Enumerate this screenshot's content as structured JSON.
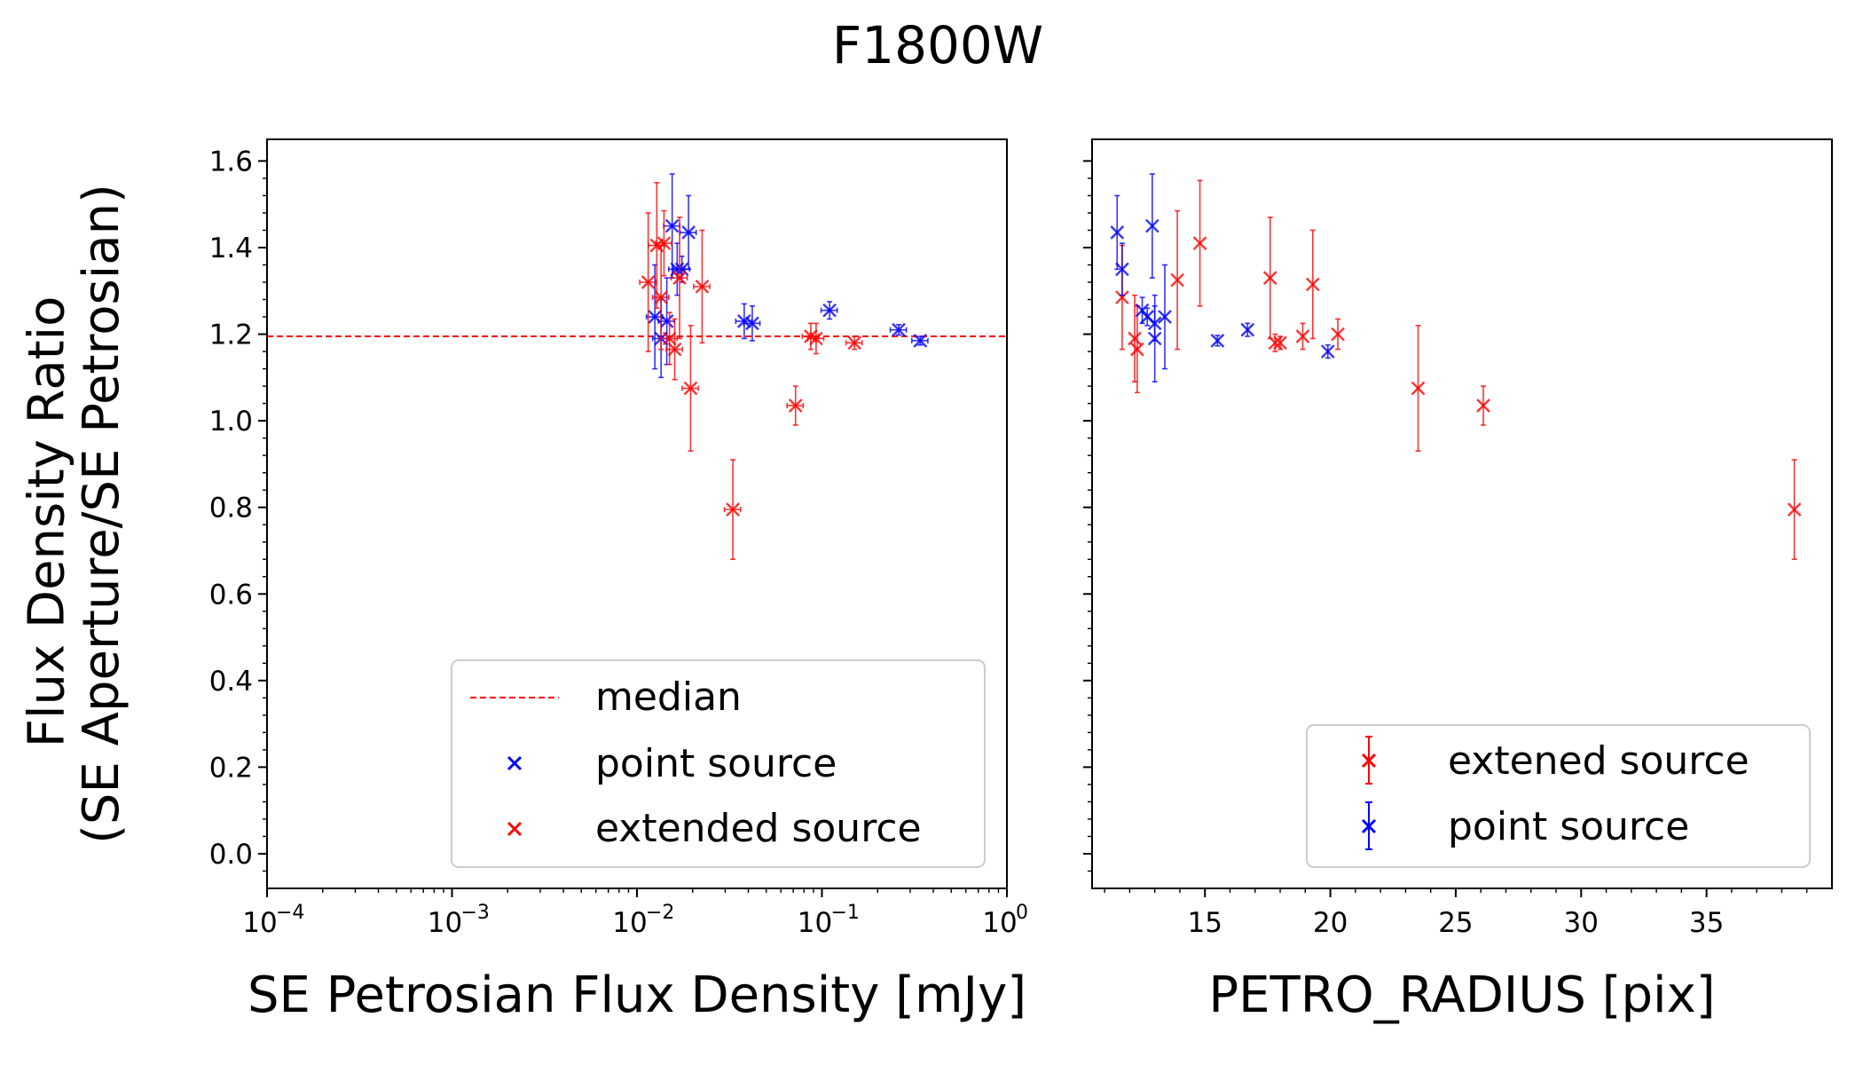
{
  "figure_title": "F1800W",
  "colors": {
    "point": "#0000ff",
    "extended": "#ff0000",
    "median": "#ff0000",
    "axis": "#000000",
    "legend_edge": "#cccccc"
  },
  "chart_data": [
    {
      "type": "scatter",
      "xscale": "log",
      "xlabel": "SE Petrosian Flux Density [mJy]",
      "ylabel": "Flux Density Ratio\n(SE Aperture/SE Petrosian)",
      "xlim": [
        0.0001,
        1
      ],
      "ylim": [
        -0.08,
        1.65
      ],
      "xtick_labels": [
        {
          "value": 0.0001,
          "base": "10",
          "exp": "−4"
        },
        {
          "value": 0.001,
          "base": "10",
          "exp": "−3"
        },
        {
          "value": 0.01,
          "base": "10",
          "exp": "−2"
        },
        {
          "value": 0.1,
          "base": "10",
          "exp": "−1"
        },
        {
          "value": 1,
          "base": "10",
          "exp": "0"
        }
      ],
      "ytick_labels": [
        "0.0",
        "0.2",
        "0.4",
        "0.6",
        "0.8",
        "1.0",
        "1.2",
        "1.4",
        "1.6"
      ],
      "median": 1.195,
      "legend": {
        "location": "lower-right",
        "entries": [
          "median",
          "point source",
          "extended source"
        ]
      },
      "series": [
        {
          "name": "point source",
          "points": [
            {
              "x": 0.0125,
              "y": 1.24,
              "yerr": 0.12
            },
            {
              "x": 0.0135,
              "y": 1.19,
              "yerr": 0.09
            },
            {
              "x": 0.0145,
              "y": 1.23,
              "yerr": 0.1
            },
            {
              "x": 0.0155,
              "y": 1.45,
              "yerr": 0.12
            },
            {
              "x": 0.0165,
              "y": 1.35,
              "yerr": 0.06
            },
            {
              "x": 0.019,
              "y": 1.435,
              "yerr": 0.085
            },
            {
              "x": 0.0175,
              "y": 1.35,
              "yerr": 0.03
            },
            {
              "x": 0.038,
              "y": 1.23,
              "yerr": 0.04
            },
            {
              "x": 0.042,
              "y": 1.225,
              "yerr": 0.04
            },
            {
              "x": 0.11,
              "y": 1.255,
              "yerr": 0.02
            },
            {
              "x": 0.26,
              "y": 1.21,
              "yerr": 0.012
            },
            {
              "x": 0.34,
              "y": 1.185,
              "yerr": 0.01
            }
          ]
        },
        {
          "name": "extended source",
          "points": [
            {
              "x": 0.0115,
              "y": 1.32,
              "yerr": 0.16
            },
            {
              "x": 0.0128,
              "y": 1.405,
              "yerr": 0.145
            },
            {
              "x": 0.0135,
              "y": 1.285,
              "yerr": 0.12
            },
            {
              "x": 0.014,
              "y": 1.41,
              "yerr": 0.075
            },
            {
              "x": 0.015,
              "y": 1.19,
              "yerr": 0.06
            },
            {
              "x": 0.016,
              "y": 1.165,
              "yerr": 0.07
            },
            {
              "x": 0.017,
              "y": 1.33,
              "yerr": 0.14
            },
            {
              "x": 0.0195,
              "y": 1.075,
              "yerr": 0.145
            },
            {
              "x": 0.0225,
              "y": 1.31,
              "yerr": 0.13
            },
            {
              "x": 0.033,
              "y": 0.795,
              "yerr": 0.115
            },
            {
              "x": 0.072,
              "y": 1.035,
              "yerr": 0.045
            },
            {
              "x": 0.087,
              "y": 1.195,
              "yerr": 0.03
            },
            {
              "x": 0.093,
              "y": 1.19,
              "yerr": 0.035
            },
            {
              "x": 0.15,
              "y": 1.18,
              "yerr": 0.015
            }
          ]
        }
      ]
    },
    {
      "type": "scatter",
      "xscale": "linear",
      "xlabel": "PETRO_RADIUS [pix]",
      "ylabel": "",
      "xlim": [
        10.5,
        40
      ],
      "ylim": [
        -0.08,
        1.65
      ],
      "xtick_labels": [
        "15",
        "20",
        "25",
        "30",
        "35"
      ],
      "legend": {
        "location": "lower-right",
        "entries": [
          "extened source",
          "point source"
        ]
      },
      "series": [
        {
          "name": "extened source",
          "points": [
            {
              "x": 11.7,
              "y": 1.285,
              "yerr": 0.12
            },
            {
              "x": 12.2,
              "y": 1.19,
              "yerr": 0.1
            },
            {
              "x": 12.3,
              "y": 1.165,
              "yerr": 0.1
            },
            {
              "x": 13.9,
              "y": 1.325,
              "yerr": 0.16
            },
            {
              "x": 14.8,
              "y": 1.41,
              "yerr": 0.145
            },
            {
              "x": 17.6,
              "y": 1.33,
              "yerr": 0.14
            },
            {
              "x": 17.8,
              "y": 1.18,
              "yerr": 0.02
            },
            {
              "x": 18.0,
              "y": 1.18,
              "yerr": 0.015
            },
            {
              "x": 18.9,
              "y": 1.195,
              "yerr": 0.03
            },
            {
              "x": 19.3,
              "y": 1.315,
              "yerr": 0.125
            },
            {
              "x": 20.3,
              "y": 1.2,
              "yerr": 0.035
            },
            {
              "x": 23.5,
              "y": 1.075,
              "yerr": 0.145
            },
            {
              "x": 26.1,
              "y": 1.035,
              "yerr": 0.045
            },
            {
              "x": 38.5,
              "y": 0.795,
              "yerr": 0.115
            }
          ]
        },
        {
          "name": "point source",
          "points": [
            {
              "x": 11.5,
              "y": 1.435,
              "yerr": 0.085
            },
            {
              "x": 11.7,
              "y": 1.35,
              "yerr": 0.06
            },
            {
              "x": 12.5,
              "y": 1.255,
              "yerr": 0.03
            },
            {
              "x": 12.7,
              "y": 1.24,
              "yerr": 0.02
            },
            {
              "x": 12.9,
              "y": 1.45,
              "yerr": 0.12
            },
            {
              "x": 13.0,
              "y": 1.19,
              "yerr": 0.1
            },
            {
              "x": 13.0,
              "y": 1.225,
              "yerr": 0.04
            },
            {
              "x": 13.4,
              "y": 1.24,
              "yerr": 0.12
            },
            {
              "x": 15.5,
              "y": 1.185,
              "yerr": 0.012
            },
            {
              "x": 16.7,
              "y": 1.21,
              "yerr": 0.015
            },
            {
              "x": 19.9,
              "y": 1.16,
              "yerr": 0.015
            }
          ]
        }
      ]
    }
  ]
}
